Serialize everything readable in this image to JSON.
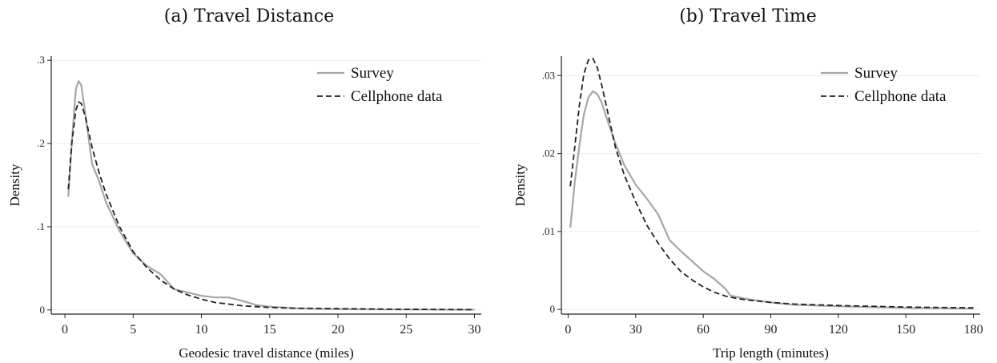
{
  "chart_data": [
    {
      "type": "line",
      "title": "(a) Travel Distance",
      "xlabel": "Geodesic travel distance (miles)",
      "ylabel": "Density",
      "xlim": [
        -1,
        30.5
      ],
      "ylim": [
        -0.005,
        0.305
      ],
      "xticks": [
        0,
        5,
        10,
        15,
        20,
        25,
        30
      ],
      "xtick_labels": [
        "0",
        "5",
        "10",
        "15",
        "20",
        "25",
        "30"
      ],
      "yticks": [
        0,
        0.1,
        0.2,
        0.3
      ],
      "ytick_labels": [
        "0",
        ".1",
        ".2",
        ".3"
      ],
      "grid": "horizontal",
      "legend_position": "top-right",
      "series": [
        {
          "name": "Survey",
          "style": "solid",
          "color": "#a6a6a6",
          "x": [
            0.25,
            0.5,
            0.8,
            1.0,
            1.2,
            1.5,
            2,
            2.5,
            3,
            4,
            5,
            6,
            7,
            8,
            9,
            10,
            11,
            12,
            13,
            14,
            15,
            17,
            20,
            25,
            30
          ],
          "y": [
            0.136,
            0.2,
            0.265,
            0.275,
            0.27,
            0.235,
            0.175,
            0.155,
            0.13,
            0.095,
            0.068,
            0.053,
            0.043,
            0.025,
            0.021,
            0.017,
            0.015,
            0.015,
            0.011,
            0.006,
            0.004,
            0.002,
            0.001,
            0.0005,
            0.0003
          ]
        },
        {
          "name": "Cellphone data",
          "style": "dashed",
          "color": "#222222",
          "x": [
            0.25,
            0.5,
            0.8,
            1.0,
            1.2,
            1.5,
            2,
            2.5,
            3,
            4,
            5,
            6,
            7,
            8,
            9,
            10,
            11,
            12,
            13,
            14,
            15,
            17,
            20,
            25,
            30
          ],
          "y": [
            0.145,
            0.2,
            0.24,
            0.25,
            0.248,
            0.232,
            0.195,
            0.165,
            0.14,
            0.1,
            0.07,
            0.051,
            0.036,
            0.025,
            0.018,
            0.013,
            0.009,
            0.007,
            0.005,
            0.004,
            0.003,
            0.002,
            0.0015,
            0.0008,
            0.0004
          ]
        }
      ]
    },
    {
      "type": "line",
      "title": "(b) Travel Time",
      "xlabel": "Trip length (minutes)",
      "ylabel": "Density",
      "xlim": [
        -3,
        183
      ],
      "ylim": [
        -0.0006,
        0.0325
      ],
      "xticks": [
        0,
        30,
        60,
        90,
        120,
        150,
        180
      ],
      "xtick_labels": [
        "0",
        "30",
        "60",
        "90",
        "120",
        "150",
        "180"
      ],
      "yticks": [
        0,
        0.01,
        0.02,
        0.03
      ],
      "ytick_labels": [
        "0",
        ".01",
        ".02",
        ".03"
      ],
      "grid": "horizontal",
      "legend_position": "top-right",
      "series": [
        {
          "name": "Survey",
          "style": "solid",
          "color": "#a6a6a6",
          "x": [
            1,
            3,
            5,
            7,
            9,
            11,
            13,
            15,
            18,
            21,
            25,
            30,
            35,
            40,
            45,
            50,
            55,
            60,
            65,
            70,
            72,
            75,
            80,
            90,
            100,
            120,
            150,
            180
          ],
          "y": [
            0.0105,
            0.0165,
            0.021,
            0.025,
            0.0272,
            0.028,
            0.0276,
            0.0265,
            0.0238,
            0.0213,
            0.0185,
            0.016,
            0.0142,
            0.0122,
            0.0089,
            0.0075,
            0.0062,
            0.0049,
            0.0039,
            0.0026,
            0.0018,
            0.0016,
            0.0013,
            0.0009,
            0.0006,
            0.0004,
            0.0002,
            0.0001
          ]
        },
        {
          "name": "Cellphone data",
          "style": "dashed",
          "color": "#222222",
          "x": [
            1,
            3,
            5,
            7,
            9,
            11,
            13,
            15,
            18,
            21,
            25,
            30,
            35,
            40,
            45,
            50,
            55,
            60,
            65,
            70,
            75,
            80,
            90,
            100,
            120,
            150,
            180
          ],
          "y": [
            0.0158,
            0.021,
            0.0262,
            0.0302,
            0.032,
            0.0322,
            0.031,
            0.0287,
            0.0248,
            0.0208,
            0.0172,
            0.0138,
            0.0108,
            0.0085,
            0.0065,
            0.0049,
            0.0038,
            0.0029,
            0.0022,
            0.0017,
            0.0014,
            0.0012,
            0.0009,
            0.0007,
            0.0005,
            0.0003,
            0.0002
          ]
        }
      ]
    }
  ]
}
